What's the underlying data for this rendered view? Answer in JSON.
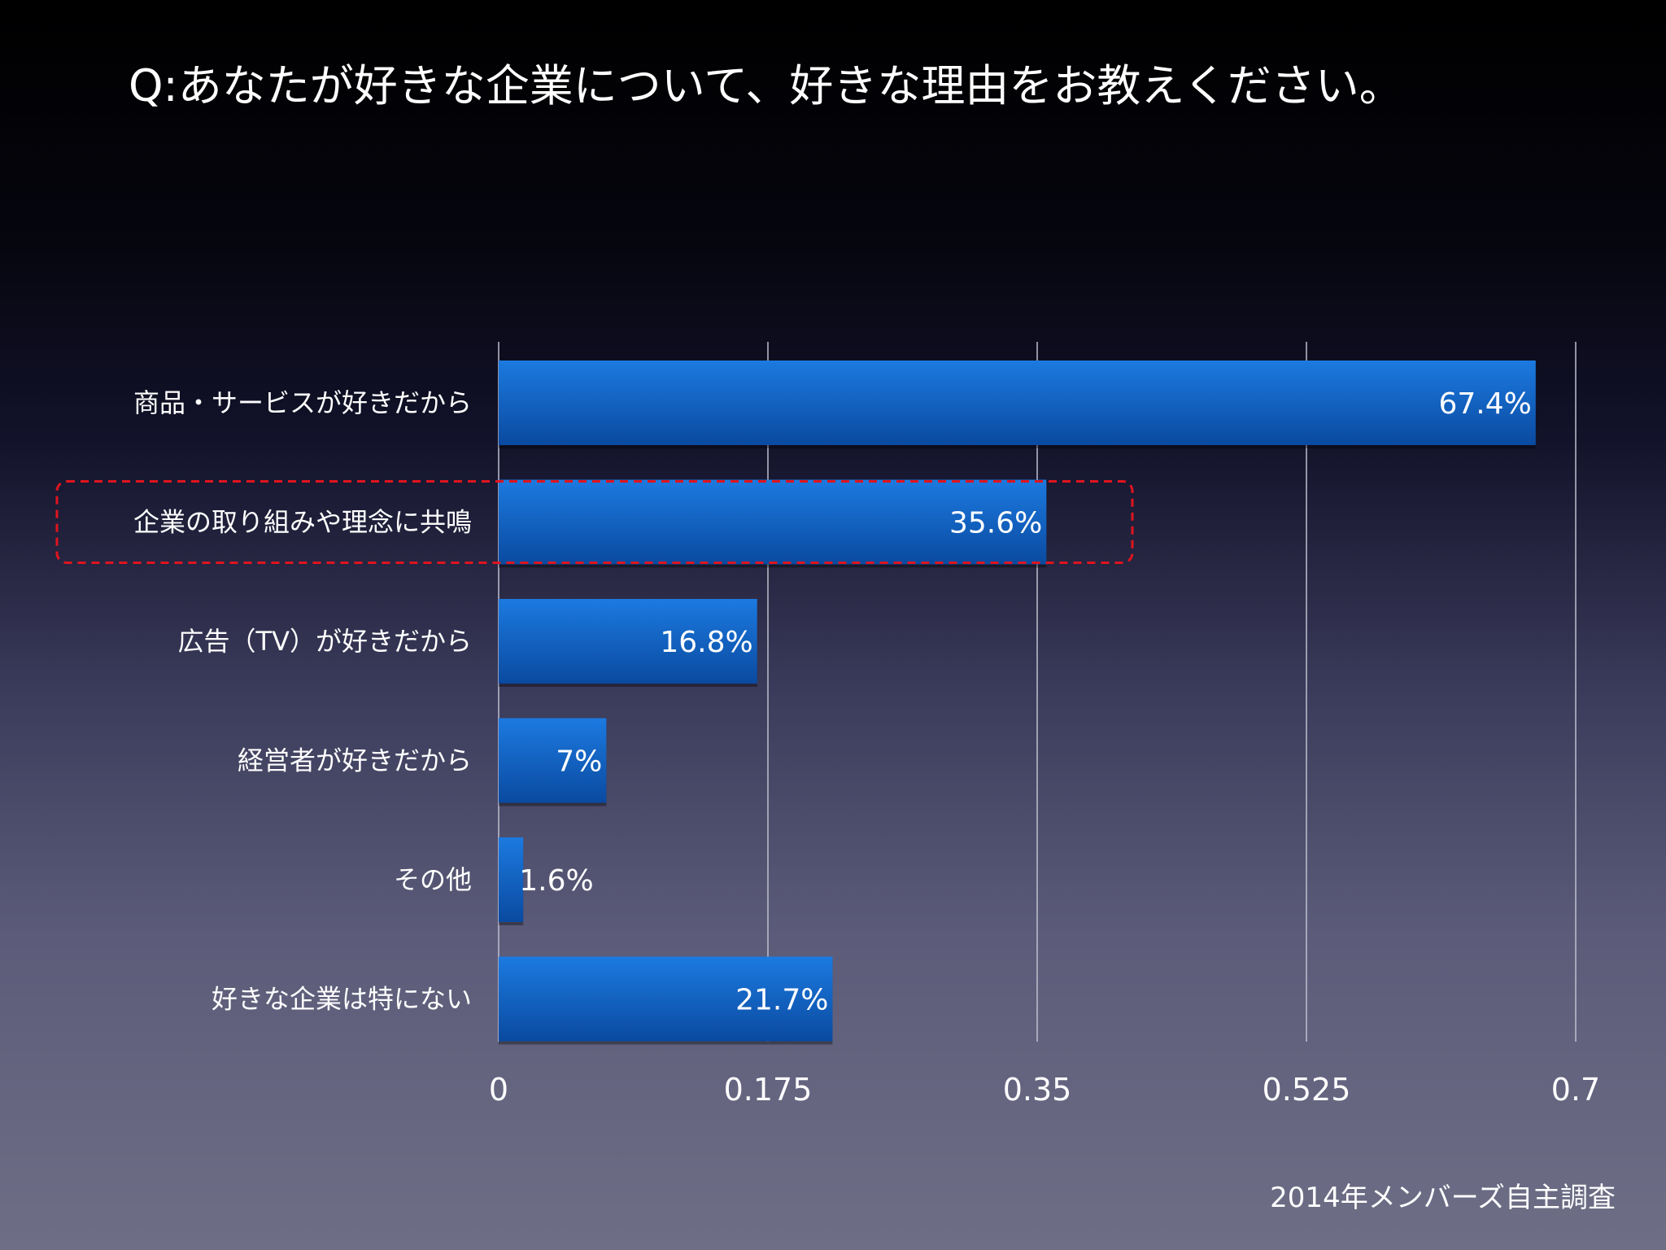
{
  "slide": {
    "title": "Q:あなたが好きな企業について、好きな理由をお教えください。",
    "source": "2014年メンバーズ自主調査"
  },
  "colors": {
    "bar_top": "#1c7ae0",
    "bar_bottom": "#0a4aa0",
    "highlight_border": "#e0141e",
    "gridline": "#bfbfcf"
  },
  "chart_data": {
    "type": "bar",
    "orientation": "horizontal",
    "categories": [
      "商品・サービスが好きだから",
      "企業の取り組みや理念に共鳴",
      "広告（TV）が好きだから",
      "経営者が好きだから",
      "その他",
      "好きな企業は特にない"
    ],
    "values": [
      0.674,
      0.356,
      0.168,
      0.07,
      0.016,
      0.217
    ],
    "value_labels": [
      "67.4%",
      "35.6%",
      "16.8%",
      "7%",
      "1.6%",
      "21.7%"
    ],
    "xlim": [
      0,
      0.7
    ],
    "xticks": [
      0,
      0.175,
      0.35,
      0.525,
      0.7
    ],
    "xtick_labels": [
      "0",
      "0.175",
      "0.35",
      "0.525",
      "0.7"
    ],
    "grid": true,
    "highlighted_category": "企業の取り組みや理念に共鳴"
  }
}
